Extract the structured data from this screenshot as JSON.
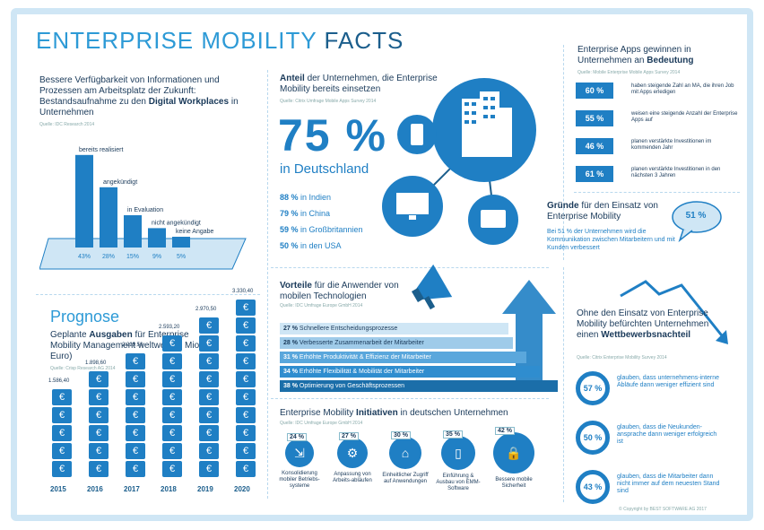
{
  "title": {
    "part1": "ENTERPRISE MOBILITY",
    "part2": "FACTS"
  },
  "digital_workplace": {
    "intro": "Bessere Verfügbarkeit von Informationen und Prozessen am Arbeitsplatz der Zukunft: Bestandsaufnahme zu den",
    "highlight": "Digital Workplaces",
    "intro_end": "in Unternehmen",
    "source": "Quelle: IDC Research 2014"
  },
  "chart_data": [
    {
      "type": "bar",
      "categories": [
        "bereits realisiert",
        "angekündigt",
        "in Evaluation",
        "nicht angekündigt",
        "keine Angabe"
      ],
      "values": [
        43,
        28,
        15,
        9,
        5
      ],
      "value_labels": [
        "43%",
        "28%",
        "15%",
        "9%",
        "5%"
      ],
      "ylim": [
        0,
        45
      ]
    },
    {
      "type": "bar",
      "title": "Prognose",
      "categories": [
        "2015",
        "2016",
        "2017",
        "2018",
        "2019",
        "2020"
      ],
      "values": [
        1586.4,
        1898.6,
        2229.5,
        2593.2,
        2970.5,
        3330.4
      ],
      "value_labels": [
        "1.586,40",
        "1.898,60",
        "2.229,50",
        "2.593,20",
        "2.970,50",
        "3.330,40"
      ],
      "coin_counts": [
        5,
        6,
        7,
        8,
        9,
        10
      ]
    },
    {
      "type": "bar",
      "title": "Vorteile für die Anwender von mobilen Technologien",
      "categories": [
        "Schnellere Entscheidungsprozesse",
        "Verbesserte Zusammenarbeit der Mitarbeiter",
        "Erhöhte Produktivität & Effizienz der Mitarbeiter",
        "Erhöhte Flexibilität & Mobilität der Mitarbeiter",
        "Optimierung von Geschäftsprozessen"
      ],
      "values": [
        27,
        28,
        31,
        34,
        38
      ]
    }
  ],
  "prognose": {
    "title": "Prognose",
    "subtitle_a": "Geplante",
    "subtitle_b": "Ausgaben",
    "subtitle_c": "für Enterprise Mobility Management weltweit (in Mio. Euro)",
    "source": "Quelle: Crisp Research AG 2014",
    "coin_symbol": "€"
  },
  "share": {
    "heading_a": "Anteil",
    "heading_b": "der Unternehmen, die Enterprise Mobility bereits einsetzen",
    "source": "Quelle: Citrix Umfrage Mobile Apps Survey 2014",
    "big_value": "75 %",
    "big_label": "in Deutschland",
    "countries": [
      {
        "pct": "88 %",
        "name": "in Indien"
      },
      {
        "pct": "79 %",
        "name": "in China"
      },
      {
        "pct": "59 %",
        "name": "in Großbritannien"
      },
      {
        "pct": "50 %",
        "name": "in den USA"
      }
    ]
  },
  "apps": {
    "heading": "Enterprise Apps gewinnen in Unternehmen an",
    "heading_bold": "Bedeutung",
    "source": "Quelle: Mobile Enterprise Mobile Apps Survey 2014",
    "items": [
      {
        "pct": "60 %",
        "text": "haben steigende Zahl an MA, die ihren Job mit Apps erledigen"
      },
      {
        "pct": "55 %",
        "text": "weisen eine steigende Anzahl der Enterprise Apps auf"
      },
      {
        "pct": "46 %",
        "text": "planen verstärkte Investitionen im kommenden Jahr"
      },
      {
        "pct": "61 %",
        "text": "planen verstärkte Investitionen in den nächsten 3 Jahren"
      }
    ]
  },
  "reasons": {
    "heading_a": "Gründe",
    "heading_b": "für den Einsatz von Enterprise Mobility",
    "bubble": "51 %",
    "text": "Bei 51 % der Unternehmen wird die Kommunikation zwischen Mitarbeitern und mit Kunden verbessert"
  },
  "vorteile": {
    "heading_a": "Vorteile",
    "heading_b": "für die Anwender von mobilen Technologien",
    "source": "Quelle: IDC Umfrage Europe GmbH 2014",
    "labels": [
      "27 %",
      "28 %",
      "31 %",
      "34 %",
      "38 %"
    ]
  },
  "initiativen": {
    "heading_a": "Enterprise Mobility",
    "heading_b": "Initiativen",
    "heading_c": "in deutschen Unternehmen",
    "source": "Quelle: IDC Umfrage Europe GmbH 2014",
    "items": [
      {
        "pct": "24 %",
        "icon": "⇲",
        "label": "Konsolidierung mobiler Betriebs-systeme"
      },
      {
        "pct": "27 %",
        "icon": "⚙",
        "label": "Anpassung von Arbeits-abläufen"
      },
      {
        "pct": "30 %",
        "icon": "⌂",
        "label": "Einheitlicher Zugriff auf Anwendungen"
      },
      {
        "pct": "35 %",
        "icon": "▯",
        "label": "Einführung & Ausbau von EMM-Software"
      },
      {
        "pct": "42 %",
        "icon": "🔒",
        "label": "Bessere mobile Sicherheit"
      }
    ]
  },
  "competition": {
    "heading": "Ohne den Einsatz von Enterprise Mobility befürchten Unternehmen einen",
    "heading_bold": "Wettbewerbsnachteil",
    "source": "Quelle: Citrix Enterprise Mobility Survey 2014",
    "items": [
      {
        "pct": "57 %",
        "text": "glauben, dass unternehmens-interne Abläufe dann weniger effizient sind"
      },
      {
        "pct": "50 %",
        "text": "glauben, dass die Neukunden-ansprache dann weniger erfolgreich ist"
      },
      {
        "pct": "43 %",
        "text": "glauben, dass die Mitarbeiter dann nicht immer auf dem neuesten Stand sind"
      }
    ]
  },
  "copyright": "© Copyright by BEST SOFTWARE AG 2017",
  "colors": {
    "primary": "#1f7fc4",
    "dark": "#1b5e8c",
    "light": "#cfe6f5"
  }
}
